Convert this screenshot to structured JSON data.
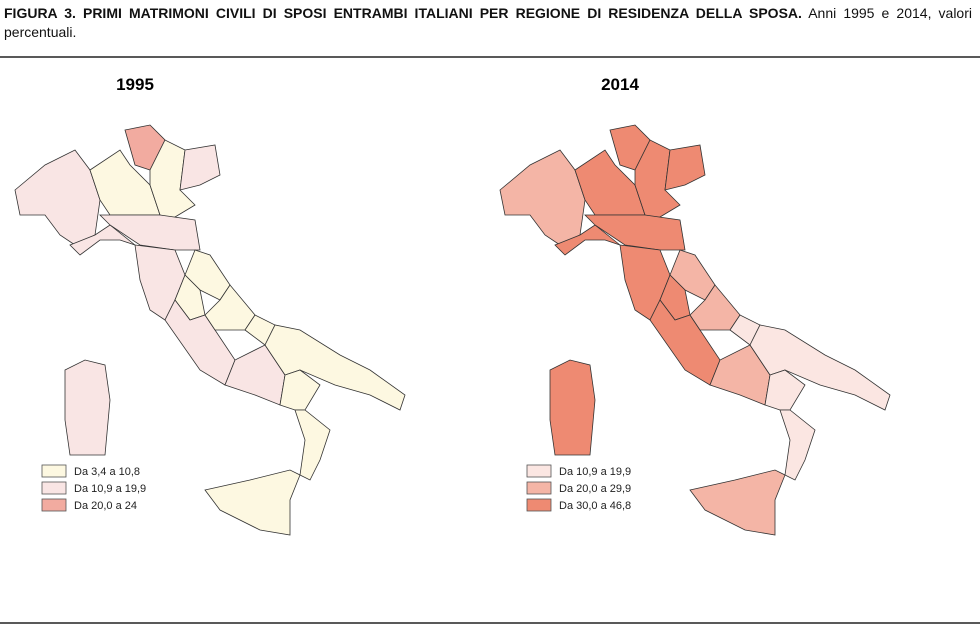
{
  "header": {
    "title": "FIGURA 3. PRIMI MATRIMONI CIVILI DI SPOSI ENTRAMBI ITALIANI PER REGIONE DI RESIDENZA DELLA SPOSA.",
    "subtitle": "Anni 1995 e 2014, valori percentuali."
  },
  "maps": [
    {
      "title": "1995",
      "legend": [
        {
          "label": "Da 3,4 a 10,8",
          "color": "#fdf8e1"
        },
        {
          "label": "Da 10,9 a 19,9",
          "color": "#f9e5e4"
        },
        {
          "label": "Da 20,0 a 24",
          "color": "#f2aba0"
        }
      ]
    },
    {
      "title": "2014",
      "legend": [
        {
          "label": "Da 10,9 a 19,9",
          "color": "#fbe6e2"
        },
        {
          "label": "Da 20,0 a 29,9",
          "color": "#f4b5a6"
        },
        {
          "label": "Da 30,0 a 46,8",
          "color": "#ee8a72"
        }
      ]
    }
  ]
}
